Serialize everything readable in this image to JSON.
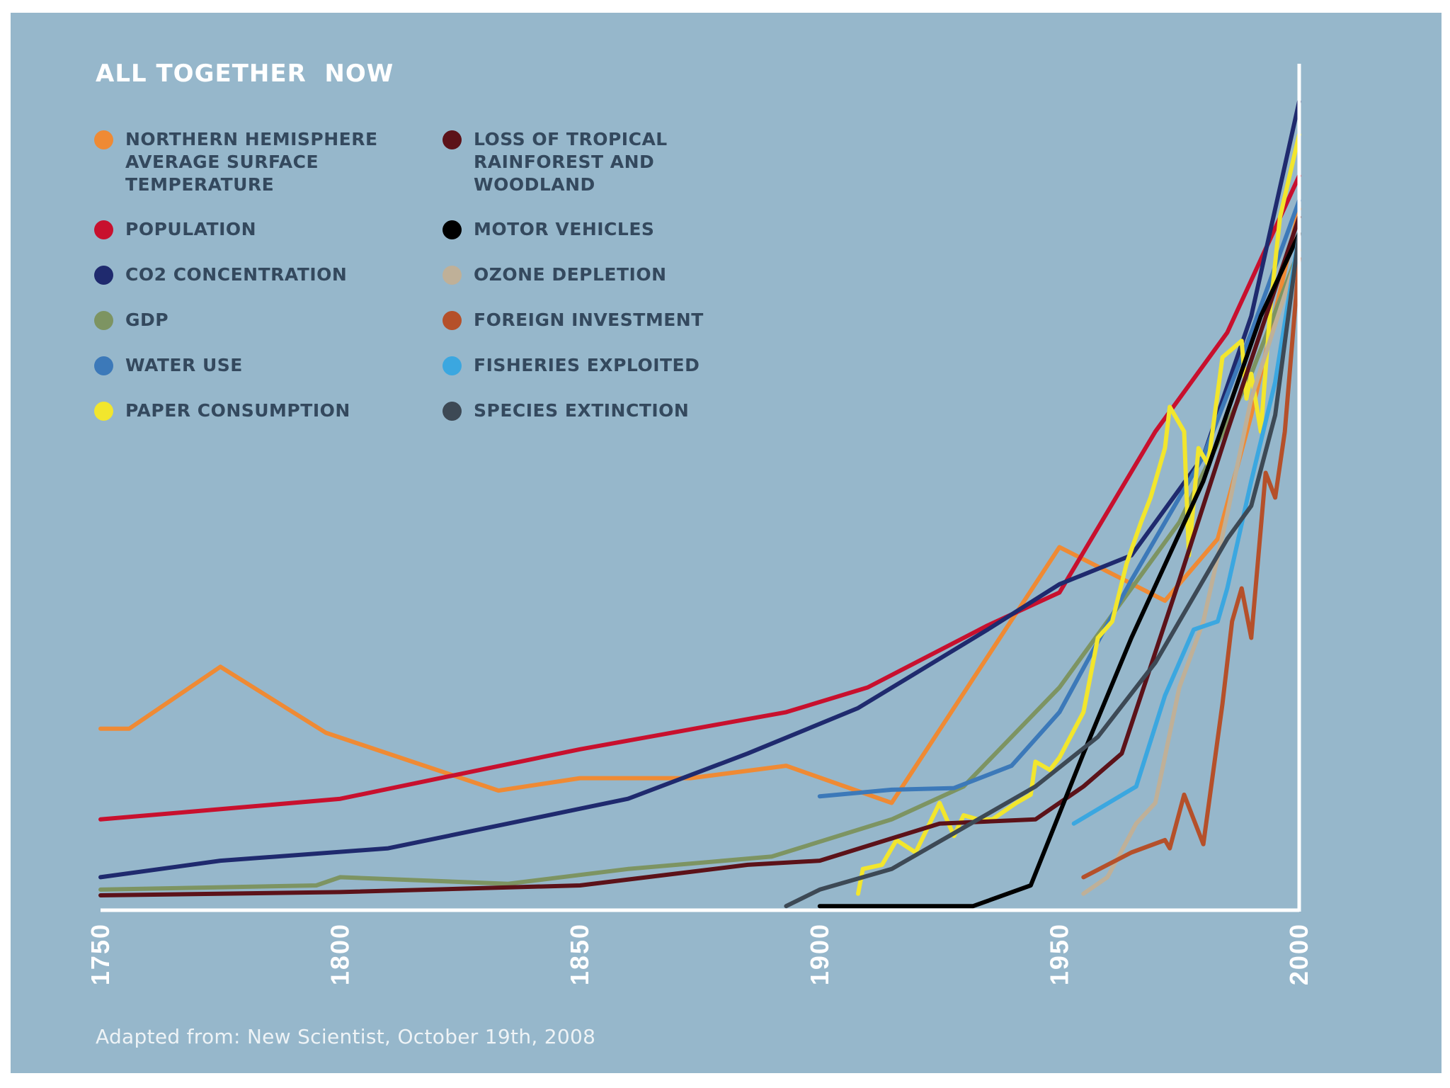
{
  "page": {
    "background": "#ffffff",
    "panel_color": "#96b7cb"
  },
  "chart_data": {
    "type": "line",
    "title": "ALL TOGETHER  NOW",
    "source": "Adapted from: New Scientist, October 19th, 2008",
    "xlabel": "",
    "ylabel": "",
    "xlim": [
      1750,
      2000
    ],
    "ylim": [
      0,
      100
    ],
    "xticks": [
      "1750",
      "1800",
      "1850",
      "1900",
      "1950",
      "2000"
    ],
    "grid": false,
    "legend_placement": "top-left",
    "axis_color": "#ffffff",
    "series": [
      {
        "name": "NORTHERN HEMISPHERE\nAVERAGE SURFACE\nTEMPERATURE",
        "color": "#ef8a34",
        "x": [
          1750,
          1756,
          1775,
          1797,
          1833,
          1850,
          1873,
          1893,
          1915,
          1950,
          1972,
          1983,
          1990,
          1996,
          2000
        ],
        "y": [
          22,
          22,
          29.5,
          21.5,
          14.5,
          16,
          16,
          17.5,
          13,
          44,
          37.5,
          45,
          60,
          75,
          85
        ]
      },
      {
        "name": "POPULATION",
        "color": "#c8102e",
        "x": [
          1750,
          1780,
          1800,
          1850,
          1893,
          1910,
          1935,
          1950,
          1970,
          1985,
          2000
        ],
        "y": [
          11,
          12.5,
          13.5,
          19.5,
          24,
          27,
          34.5,
          38.5,
          58,
          70,
          89
        ]
      },
      {
        "name": "CO2 CONCENTRATION",
        "color": "#1f2a6e",
        "x": [
          1750,
          1775,
          1810,
          1835,
          1860,
          1885,
          1908,
          1935,
          1950,
          1965,
          1980,
          1990,
          2000
        ],
        "y": [
          4,
          6,
          7.5,
          10.5,
          13.5,
          19,
          24.5,
          34,
          39.5,
          43,
          55,
          72,
          98
        ]
      },
      {
        "name": "GDP",
        "color": "#7d9462",
        "x": [
          1750,
          1795,
          1800,
          1835,
          1860,
          1890,
          1915,
          1930,
          1950,
          1975,
          1990,
          2000
        ],
        "y": [
          2.5,
          3,
          4,
          3.2,
          5,
          6.5,
          11,
          15,
          27,
          47,
          65,
          80
        ]
      },
      {
        "name": "WATER USE",
        "color": "#3c79b9",
        "x": [
          1900,
          1915,
          1928,
          1940,
          1950,
          1965,
          1980,
          1990,
          2000
        ],
        "y": [
          13.8,
          14.6,
          14.8,
          17.5,
          24,
          40,
          55,
          70,
          86
        ]
      },
      {
        "name": "PAPER CONSUMPTION",
        "color": "#f2e62d",
        "x": [
          1908,
          1909,
          1913,
          1916,
          1920,
          1925,
          1928,
          1930,
          1933,
          1936,
          1941,
          1944,
          1945,
          1948,
          1950,
          1955,
          1958,
          1961,
          1964,
          1967,
          1969,
          1972,
          1973,
          1976,
          1977,
          1979,
          1981,
          1984,
          1986,
          1988,
          1989,
          1990,
          1992,
          1994,
          1996,
          2000
        ],
        "y": [
          2,
          5,
          5.5,
          8.5,
          7,
          13,
          9,
          11.5,
          11,
          11,
          13,
          14,
          18,
          17,
          18.5,
          24,
          33,
          35,
          42,
          47,
          50,
          56,
          61,
          58,
          43,
          56,
          54,
          67,
          68,
          69,
          62,
          65,
          58,
          73,
          84,
          94
        ]
      },
      {
        "name": "LOSS OF TROPICAL\nRAINFOREST AND\nWOODLAND",
        "color": "#5c1219",
        "x": [
          1750,
          1800,
          1850,
          1885,
          1900,
          1925,
          1945,
          1955,
          1963,
          1975,
          1985,
          2000
        ],
        "y": [
          1.8,
          2.2,
          3,
          5.5,
          6,
          10.5,
          11,
          15,
          19,
          40,
          58,
          84
        ]
      },
      {
        "name": "MOTOR VEHICLES",
        "color": "#000000",
        "x": [
          1900,
          1932,
          1944,
          1955,
          1965,
          1980,
          1992,
          2000
        ],
        "y": [
          0.5,
          0.5,
          3,
          19,
          33,
          52,
          72,
          82
        ]
      },
      {
        "name": "OZONE DEPLETION",
        "color": "#bfb098",
        "x": [
          1955,
          1960,
          1966,
          1970,
          1975,
          1980,
          1985,
          1990,
          2000
        ],
        "y": [
          2,
          4,
          10.5,
          13,
          27,
          35,
          48,
          62,
          80
        ]
      },
      {
        "name": "FOREIGN INVESTMENT",
        "color": "#b5502a",
        "x": [
          1955,
          1965,
          1972,
          1973,
          1976,
          1980,
          1984,
          1986,
          1988,
          1990,
          1993,
          1995,
          1997,
          2000
        ],
        "y": [
          4,
          7,
          8.5,
          7.5,
          14,
          8,
          25,
          35,
          39,
          33,
          53,
          50,
          58,
          79
        ]
      },
      {
        "name": "FISHERIES EXPLOITED",
        "color": "#3ba7e0",
        "x": [
          1953,
          1966,
          1972,
          1978,
          1983,
          1985,
          1990,
          1995,
          2000
        ],
        "y": [
          10.5,
          15,
          26,
          34,
          35,
          39,
          52,
          64,
          82
        ]
      },
      {
        "name": "SPECIES EXTINCTION",
        "color": "#3d4955",
        "x": [
          1893,
          1900,
          1915,
          1930,
          1945,
          1958,
          1970,
          1985,
          1990,
          1995,
          2000
        ],
        "y": [
          0.5,
          2.5,
          5,
          10,
          15,
          21,
          30,
          45,
          49,
          60,
          82
        ]
      }
    ]
  }
}
